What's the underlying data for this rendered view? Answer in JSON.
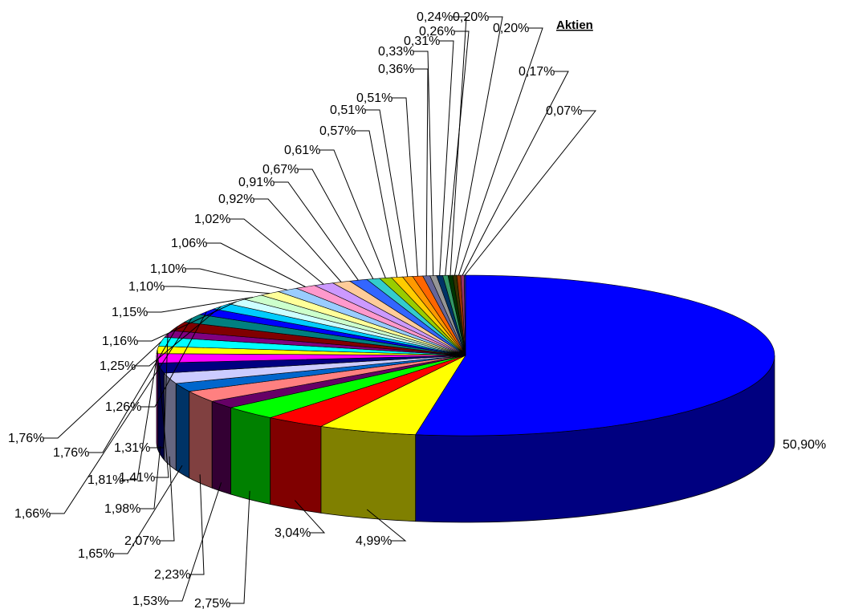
{
  "chart_data": {
    "type": "pie",
    "style": "3d",
    "title": "Aktien",
    "values": [
      50.9,
      4.99,
      3.04,
      2.75,
      1.53,
      2.23,
      1.65,
      2.07,
      1.98,
      1.81,
      1.41,
      1.76,
      1.31,
      1.76,
      1.66,
      1.26,
      1.25,
      1.16,
      1.15,
      1.1,
      1.1,
      1.06,
      1.02,
      0.92,
      0.91,
      0.67,
      0.61,
      0.57,
      0.51,
      0.51,
      0.36,
      0.33,
      0.31,
      0.26,
      0.24,
      0.2,
      0.2,
      0.17,
      0.07
    ],
    "labels": [
      "50,90%",
      "4,99%",
      "3,04%",
      "2,75%",
      "1,53%",
      "2,23%",
      "1,65%",
      "2,07%",
      "1,98%",
      "1,81%",
      "1,41%",
      "1,76%",
      "1,31%",
      "1,76%",
      "1,66%",
      "1,26%",
      "1,25%",
      "1,16%",
      "1,15%",
      "1,10%",
      "1,10%",
      "1,06%",
      "1,02%",
      "0,92%",
      "0,91%",
      "0,67%",
      "0,61%",
      "0,57%",
      "0,51%",
      "0,51%",
      "0,36%",
      "0,33%",
      "0,31%",
      "0,26%",
      "0,24%",
      "0,20%",
      "0,20%",
      "0,17%",
      "0,07%"
    ],
    "colors": [
      "#0000ff",
      "#ffff00",
      "#ff0000",
      "#00ff00",
      "#660066",
      "#ff8080",
      "#0066cc",
      "#ccccff",
      "#000080",
      "#ff00ff",
      "#ffff00",
      "#00ffff",
      "#800080",
      "#800000",
      "#008080",
      "#0000ff",
      "#00ccff",
      "#ccffff",
      "#ccffcc",
      "#ffff99",
      "#99ccff",
      "#ff99cc",
      "#cc99ff",
      "#ffcc99",
      "#3366ff",
      "#33cccc",
      "#99cc00",
      "#ffcc00",
      "#ff9900",
      "#ff6600",
      "#666699",
      "#969696",
      "#003366",
      "#339966",
      "#003300",
      "#333300",
      "#993300",
      "#993366",
      "#333399"
    ],
    "legend": "none"
  }
}
